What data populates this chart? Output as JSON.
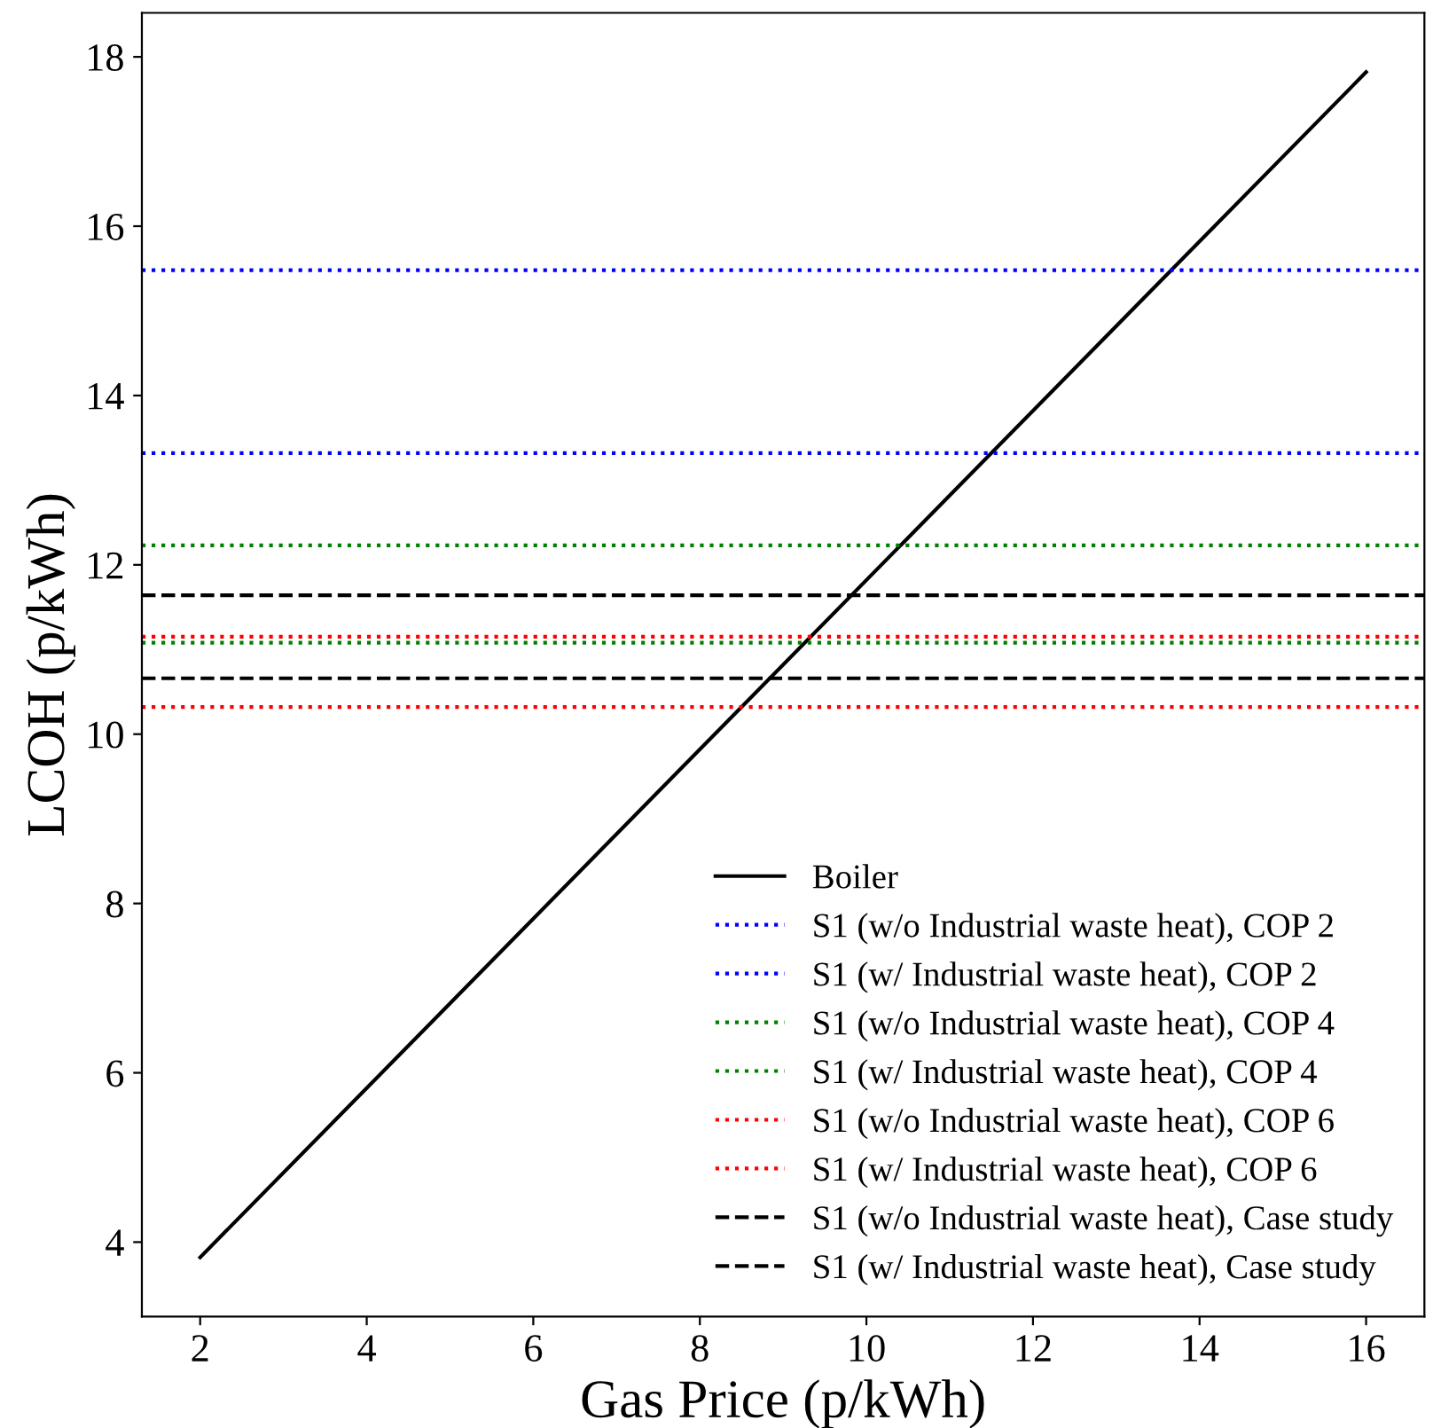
{
  "chart_data": {
    "type": "line",
    "xlabel": "Gas Price (p/kWh)",
    "ylabel": "LCOH (p/kWh)",
    "xlim": [
      1.3,
      16.7
    ],
    "ylim": [
      3.12,
      18.52
    ],
    "xticks": [
      2,
      4,
      6,
      8,
      10,
      12,
      14,
      16
    ],
    "yticks": [
      4,
      6,
      8,
      10,
      12,
      14,
      16,
      18
    ],
    "grid": false,
    "legend": "bottom right",
    "series": [
      {
        "name": "Boiler",
        "color": "#000000",
        "line_style": "solid",
        "x": [
          2,
          16
        ],
        "values": [
          3.82,
          17.82
        ]
      },
      {
        "name": "S1 (w/o Industrial waste heat), COP 2",
        "color": "#0000ff",
        "line_style": "dotted",
        "x": [
          1.3,
          16.7
        ],
        "values": [
          15.48,
          15.48
        ]
      },
      {
        "name": "S1 (w/ Industrial waste heat), COP 2",
        "color": "#0000ff",
        "line_style": "dotted",
        "x": [
          1.3,
          16.7
        ],
        "values": [
          13.32,
          13.32
        ]
      },
      {
        "name": "S1 (w/o Industrial waste heat), COP 4",
        "color": "#008000",
        "line_style": "dotted",
        "x": [
          1.3,
          16.7
        ],
        "values": [
          12.23,
          12.23
        ]
      },
      {
        "name": "S1 (w/ Industrial waste heat), COP 4",
        "color": "#008000",
        "line_style": "dotted",
        "x": [
          1.3,
          16.7
        ],
        "values": [
          11.08,
          11.08
        ]
      },
      {
        "name": "S1 (w/o Industrial waste heat), COP 6",
        "color": "#ff0000",
        "line_style": "dotted",
        "x": [
          1.3,
          16.7
        ],
        "values": [
          11.15,
          11.15
        ]
      },
      {
        "name": "S1 (w/ Industrial waste heat), COP 6",
        "color": "#ff0000",
        "line_style": "dotted",
        "x": [
          1.3,
          16.7
        ],
        "values": [
          10.32,
          10.32
        ]
      },
      {
        "name": "S1 (w/o Industrial waste heat), Case study",
        "color": "#000000",
        "line_style": "dashed",
        "x": [
          1.3,
          16.7
        ],
        "values": [
          11.64,
          11.64
        ]
      },
      {
        "name": "S1 (w/ Industrial waste heat), Case study",
        "color": "#000000",
        "line_style": "dashed",
        "x": [
          1.3,
          16.7
        ],
        "values": [
          10.66,
          10.66
        ]
      }
    ]
  }
}
